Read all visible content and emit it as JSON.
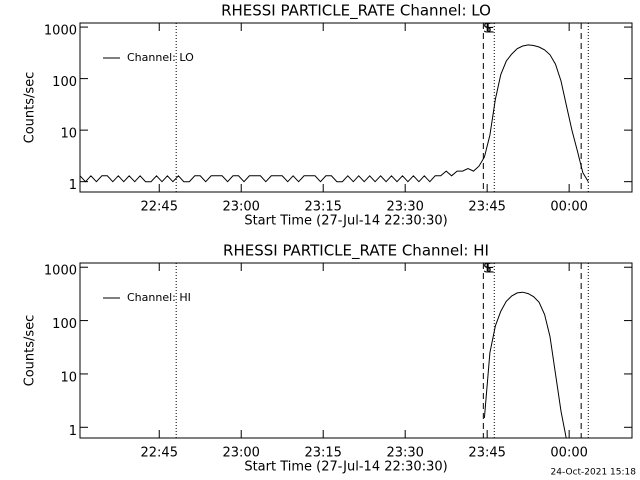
{
  "chart_data": [
    {
      "type": "line",
      "title": "RHESSI PARTICLE_RATE Channel: LO",
      "xlabel": "Start Time (27-Jul-14 22:30:30)",
      "ylabel": "Counts/sec",
      "xlim": [
        0,
        101
      ],
      "ylim": [
        0.63,
        1200
      ],
      "log_y": true,
      "legend": "upper left",
      "xticks": [
        {
          "value": 14.5,
          "label": "22:45"
        },
        {
          "value": 29.5,
          "label": "23:00"
        },
        {
          "value": 44.5,
          "label": "23:15"
        },
        {
          "value": 59.5,
          "label": "23:30"
        },
        {
          "value": 74.5,
          "label": "23:45"
        },
        {
          "value": 89.5,
          "label": "00:00"
        }
      ],
      "yticks": [
        1,
        10,
        100,
        1000
      ],
      "vlines": [
        {
          "x": 17.6,
          "style": "dotted"
        },
        {
          "x": 73.8,
          "style": "dashed"
        },
        {
          "x": 75.8,
          "style": "dotted"
        },
        {
          "x": 91.7,
          "style": "dashed"
        },
        {
          "x": 93,
          "style": "dotted"
        }
      ],
      "annotations": [
        {
          "text": "S",
          "x": 73.8
        },
        {
          "text": "E",
          "x": 75.8
        }
      ],
      "series": [
        {
          "name": "Channel: LO",
          "color": "#000000",
          "x": [
            0,
            1,
            2,
            3,
            4,
            5,
            6,
            7,
            8,
            9,
            10,
            11,
            12,
            13,
            14,
            15,
            16,
            17,
            18,
            19,
            20,
            21,
            22,
            23,
            24,
            25,
            26,
            27,
            28,
            29,
            30,
            31,
            32,
            33,
            34,
            35,
            36,
            37,
            38,
            39,
            40,
            41,
            42,
            43,
            44,
            45,
            46,
            47,
            48,
            49,
            50,
            51,
            52,
            53,
            54,
            55,
            56,
            57,
            58,
            59,
            60,
            61,
            62,
            63,
            64,
            65,
            66,
            67,
            68,
            69,
            70,
            71,
            72,
            73,
            74,
            75,
            76,
            77,
            78,
            79,
            80,
            81,
            82,
            83,
            84,
            85,
            86,
            87,
            88,
            89,
            90,
            91,
            92,
            93
          ],
          "values": [
            1.3,
            1,
            1.3,
            1,
            1.3,
            1.3,
            1,
            1.3,
            1,
            1.3,
            1,
            1.3,
            1,
            1,
            1.3,
            1,
            1.3,
            1,
            1.3,
            1,
            1,
            1.3,
            1.3,
            1,
            1.3,
            1.3,
            1.3,
            1,
            1.3,
            1.3,
            1,
            1.3,
            1.3,
            1.3,
            1,
            1.3,
            1.3,
            1.3,
            1,
            1.3,
            1,
            1.3,
            1.3,
            1.3,
            1,
            1.3,
            1.3,
            1,
            1,
            1.3,
            1,
            1.3,
            1,
            1.3,
            1,
            1.3,
            1,
            1.3,
            1,
            1.3,
            1,
            1.3,
            1,
            1.3,
            1,
            1.3,
            1.3,
            1.6,
            1.3,
            1.6,
            1.6,
            1.8,
            1.6,
            2,
            3,
            8,
            40,
            120,
            220,
            300,
            380,
            430,
            450,
            440,
            410,
            360,
            290,
            190,
            90,
            30,
            10,
            4,
            1.5,
            1
          ]
        }
      ]
    },
    {
      "type": "line",
      "title": "RHESSI PARTICLE_RATE Channel: HI",
      "xlabel": "Start Time (27-Jul-14 22:30:30)",
      "ylabel": "Counts/sec",
      "xlim": [
        0,
        101
      ],
      "ylim": [
        0.63,
        1200
      ],
      "log_y": true,
      "legend": "upper left",
      "xticks": [
        {
          "value": 14.5,
          "label": "22:45"
        },
        {
          "value": 29.5,
          "label": "23:00"
        },
        {
          "value": 44.5,
          "label": "23:15"
        },
        {
          "value": 59.5,
          "label": "23:30"
        },
        {
          "value": 74.5,
          "label": "23:45"
        },
        {
          "value": 89.5,
          "label": "00:00"
        }
      ],
      "yticks": [
        1,
        10,
        100,
        1000
      ],
      "vlines": [
        {
          "x": 17.6,
          "style": "dotted"
        },
        {
          "x": 73.8,
          "style": "dashed"
        },
        {
          "x": 75.8,
          "style": "dotted"
        },
        {
          "x": 91.7,
          "style": "dashed"
        },
        {
          "x": 93,
          "style": "dotted"
        }
      ],
      "annotations": [
        {
          "text": "S",
          "x": 73.8
        },
        {
          "text": "E",
          "x": 75.8
        }
      ],
      "series": [
        {
          "name": "Channel: HI",
          "color": "#000000",
          "x": [
            74,
            75,
            76,
            77,
            78,
            79,
            80,
            81,
            82,
            83,
            84,
            85,
            86,
            87,
            88,
            89
          ],
          "values": [
            1.5,
            25,
            80,
            150,
            230,
            290,
            330,
            340,
            320,
            280,
            220,
            130,
            50,
            10,
            2,
            0.6
          ]
        }
      ]
    }
  ],
  "footer": "24-Oct-2021 15:18"
}
